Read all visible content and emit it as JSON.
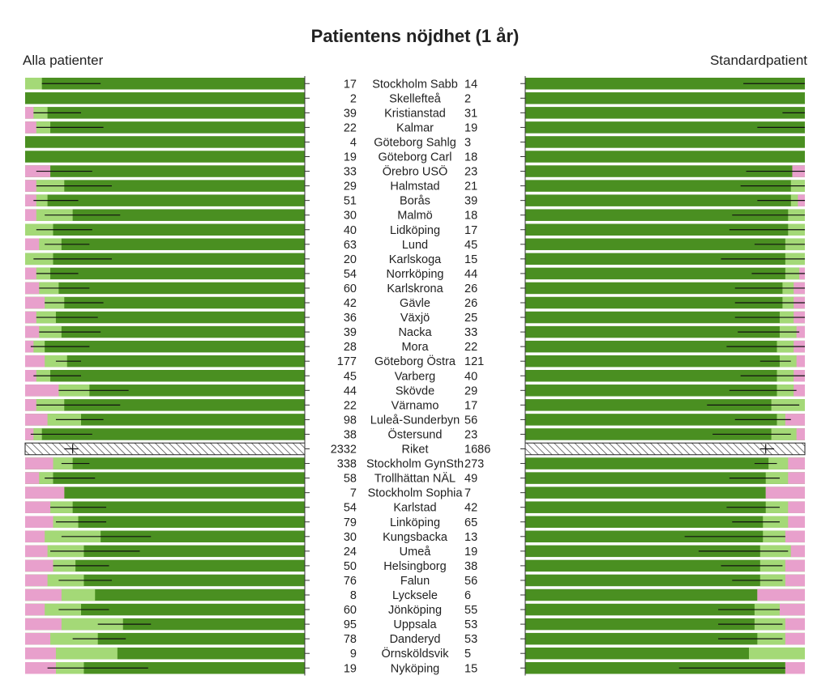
{
  "chart_data": {
    "type": "bar",
    "title": "Patientens nöjdhet (1 år)",
    "left_panel_title": "Alla patienter",
    "right_panel_title": "Standardpatient",
    "colors": {
      "low": "#e8a0cc",
      "mid": "#a4d977",
      "high": "#4a8f21",
      "error_bar": "#111111",
      "axis": "#333333"
    },
    "rows": [
      {
        "name": "Stockholm Sabb",
        "n_all": "17",
        "n_std": "14",
        "all": {
          "low": 0.0,
          "mid": 0.06,
          "est": 0.06,
          "ci": [
            0.06,
            0.27
          ]
        },
        "std": {
          "low": 0.0,
          "mid": 0.0,
          "est": 0.0,
          "ci": [
            0.0,
            0.22
          ]
        }
      },
      {
        "name": "Skellefteå",
        "n_all": "2",
        "n_std": "2",
        "all": {
          "low": 0.0,
          "mid": 0.0,
          "est": 0.0,
          "ci": null
        },
        "std": {
          "low": 0.0,
          "mid": 0.0,
          "est": 0.0,
          "ci": null
        }
      },
      {
        "name": "Kristianstad",
        "n_all": "39",
        "n_std": "31",
        "all": {
          "low": 0.03,
          "mid": 0.08,
          "est": 0.08,
          "ci": [
            0.03,
            0.2
          ]
        },
        "std": {
          "low": 0.0,
          "mid": 0.0,
          "est": 0.0,
          "ci": [
            0.0,
            0.08
          ]
        }
      },
      {
        "name": "Kalmar",
        "n_all": "22",
        "n_std": "19",
        "all": {
          "low": 0.04,
          "mid": 0.09,
          "est": 0.09,
          "ci": [
            0.04,
            0.28
          ]
        },
        "std": {
          "low": 0.0,
          "mid": 0.0,
          "est": 0.0,
          "ci": [
            0.0,
            0.17
          ]
        }
      },
      {
        "name": "Göteborg Sahlg",
        "n_all": "4",
        "n_std": "3",
        "all": {
          "low": 0.0,
          "mid": 0.0,
          "est": 0.0,
          "ci": null
        },
        "std": {
          "low": 0.0,
          "mid": 0.0,
          "est": 0.0,
          "ci": null
        }
      },
      {
        "name": "Göteborg Carl",
        "n_all": "19",
        "n_std": "18",
        "all": {
          "low": 0.0,
          "mid": 0.0,
          "est": 0.0,
          "ci": null
        },
        "std": {
          "low": 0.0,
          "mid": 0.0,
          "est": 0.0,
          "ci": null
        }
      },
      {
        "name": "Örebro USÖ",
        "n_all": "33",
        "n_std": "23",
        "all": {
          "low": 0.09,
          "mid": 0.09,
          "est": 0.09,
          "ci": [
            0.04,
            0.24
          ]
        },
        "std": {
          "low": 0.045,
          "mid": 0.045,
          "est": 0.045,
          "ci": [
            0.0,
            0.21
          ]
        }
      },
      {
        "name": "Halmstad",
        "n_all": "29",
        "n_std": "21",
        "all": {
          "low": 0.04,
          "mid": 0.14,
          "est": 0.14,
          "ci": [
            0.04,
            0.31
          ]
        },
        "std": {
          "low": 0.0,
          "mid": 0.05,
          "est": 0.05,
          "ci": [
            0.0,
            0.23
          ]
        }
      },
      {
        "name": "Borås",
        "n_all": "51",
        "n_std": "39",
        "all": {
          "low": 0.04,
          "mid": 0.08,
          "est": 0.08,
          "ci": [
            0.03,
            0.19
          ]
        },
        "std": {
          "low": 0.025,
          "mid": 0.05,
          "est": 0.05,
          "ci": [
            0.0,
            0.17
          ]
        }
      },
      {
        "name": "Malmö",
        "n_all": "30",
        "n_std": "18",
        "all": {
          "low": 0.04,
          "mid": 0.17,
          "est": 0.17,
          "ci": [
            0.07,
            0.34
          ]
        },
        "std": {
          "low": 0.0,
          "mid": 0.06,
          "est": 0.06,
          "ci": [
            0.0,
            0.26
          ]
        }
      },
      {
        "name": "Lidköping",
        "n_all": "40",
        "n_std": "17",
        "all": {
          "low": 0.0,
          "mid": 0.1,
          "est": 0.1,
          "ci": [
            0.04,
            0.24
          ]
        },
        "std": {
          "low": 0.0,
          "mid": 0.06,
          "est": 0.06,
          "ci": [
            0.0,
            0.27
          ]
        }
      },
      {
        "name": "Lund",
        "n_all": "63",
        "n_std": "45",
        "all": {
          "low": 0.05,
          "mid": 0.13,
          "est": 0.13,
          "ci": [
            0.07,
            0.23
          ]
        },
        "std": {
          "low": 0.0,
          "mid": 0.07,
          "est": 0.07,
          "ci": [
            0.0,
            0.18
          ]
        }
      },
      {
        "name": "Karlskoga",
        "n_all": "20",
        "n_std": "15",
        "all": {
          "low": 0.0,
          "mid": 0.1,
          "est": 0.1,
          "ci": [
            0.03,
            0.31
          ]
        },
        "std": {
          "low": 0.0,
          "mid": 0.07,
          "est": 0.07,
          "ci": [
            0.0,
            0.3
          ]
        }
      },
      {
        "name": "Norrköping",
        "n_all": "54",
        "n_std": "44",
        "all": {
          "low": 0.04,
          "mid": 0.09,
          "est": 0.09,
          "ci": [
            0.04,
            0.19
          ]
        },
        "std": {
          "low": 0.02,
          "mid": 0.07,
          "est": 0.07,
          "ci": [
            0.0,
            0.19
          ]
        }
      },
      {
        "name": "Karlskrona",
        "n_all": "60",
        "n_std": "26",
        "all": {
          "low": 0.05,
          "mid": 0.12,
          "est": 0.12,
          "ci": [
            0.05,
            0.23
          ]
        },
        "std": {
          "low": 0.04,
          "mid": 0.08,
          "est": 0.08,
          "ci": [
            0.0,
            0.25
          ]
        }
      },
      {
        "name": "Gävle",
        "n_all": "42",
        "n_std": "26",
        "all": {
          "low": 0.07,
          "mid": 0.14,
          "est": 0.14,
          "ci": [
            0.07,
            0.28
          ]
        },
        "std": {
          "low": 0.04,
          "mid": 0.08,
          "est": 0.08,
          "ci": [
            0.0,
            0.25
          ]
        }
      },
      {
        "name": "Växjö",
        "n_all": "36",
        "n_std": "25",
        "all": {
          "low": 0.04,
          "mid": 0.11,
          "est": 0.11,
          "ci": [
            0.04,
            0.26
          ]
        },
        "std": {
          "low": 0.04,
          "mid": 0.09,
          "est": 0.09,
          "ci": [
            0.0,
            0.25
          ]
        }
      },
      {
        "name": "Nacka",
        "n_all": "39",
        "n_std": "33",
        "all": {
          "low": 0.05,
          "mid": 0.13,
          "est": 0.13,
          "ci": [
            0.05,
            0.27
          ]
        },
        "std": {
          "low": 0.03,
          "mid": 0.09,
          "est": 0.09,
          "ci": [
            0.02,
            0.24
          ]
        }
      },
      {
        "name": "Mora",
        "n_all": "28",
        "n_std": "22",
        "all": {
          "low": 0.03,
          "mid": 0.07,
          "est": 0.07,
          "ci": [
            0.02,
            0.23
          ]
        },
        "std": {
          "low": 0.04,
          "mid": 0.1,
          "est": 0.1,
          "ci": [
            0.0,
            0.28
          ]
        }
      },
      {
        "name": "Göteborg Östra",
        "n_all": "177",
        "n_std": "121",
        "all": {
          "low": 0.07,
          "mid": 0.15,
          "est": 0.15,
          "ci": [
            0.11,
            0.2
          ]
        },
        "std": {
          "low": 0.03,
          "mid": 0.09,
          "est": 0.09,
          "ci": [
            0.05,
            0.16
          ]
        }
      },
      {
        "name": "Varberg",
        "n_all": "45",
        "n_std": "40",
        "all": {
          "low": 0.04,
          "mid": 0.09,
          "est": 0.09,
          "ci": [
            0.03,
            0.2
          ]
        },
        "std": {
          "low": 0.04,
          "mid": 0.1,
          "est": 0.1,
          "ci": [
            0.0,
            0.23
          ]
        }
      },
      {
        "name": "Skövde",
        "n_all": "44",
        "n_std": "29",
        "all": {
          "low": 0.12,
          "mid": 0.23,
          "est": 0.23,
          "ci": [
            0.12,
            0.37
          ]
        },
        "std": {
          "low": 0.04,
          "mid": 0.1,
          "est": 0.1,
          "ci": [
            0.03,
            0.27
          ]
        }
      },
      {
        "name": "Värnamo",
        "n_all": "22",
        "n_std": "17",
        "all": {
          "low": 0.04,
          "mid": 0.14,
          "est": 0.14,
          "ci": [
            0.04,
            0.34
          ]
        },
        "std": {
          "low": 0.0,
          "mid": 0.12,
          "est": 0.12,
          "ci": [
            0.02,
            0.35
          ]
        }
      },
      {
        "name": "Luleå-Sunderbyn",
        "n_all": "98",
        "n_std": "56",
        "all": {
          "low": 0.08,
          "mid": 0.2,
          "est": 0.2,
          "ci": [
            0.11,
            0.28
          ]
        },
        "std": {
          "low": 0.07,
          "mid": 0.1,
          "est": 0.13,
          "ci": [
            0.05,
            0.25
          ]
        }
      },
      {
        "name": "Östersund",
        "n_all": "38",
        "n_std": "23",
        "all": {
          "low": 0.03,
          "mid": 0.06,
          "est": 0.06,
          "ci": [
            0.02,
            0.24
          ]
        },
        "std": {
          "low": 0.03,
          "mid": 0.12,
          "est": 0.13,
          "ci": [
            0.05,
            0.33
          ]
        }
      },
      {
        "name": "Riket",
        "n_all": "2332",
        "n_std": "1686",
        "hatched": true,
        "all": {
          "low": 0.08,
          "mid": 0.17,
          "est": 0.17,
          "ci": [
            0.14,
            0.19
          ]
        },
        "std": {
          "low": 0.05,
          "mid": 0.13,
          "est": 0.14,
          "ci": [
            0.11,
            0.16
          ]
        }
      },
      {
        "name": "Stockholm GynSth",
        "n_all": "338",
        "n_std": "273",
        "all": {
          "low": 0.1,
          "mid": 0.17,
          "est": 0.17,
          "ci": [
            0.13,
            0.23
          ]
        },
        "std": {
          "low": 0.06,
          "mid": 0.13,
          "est": 0.13,
          "ci": [
            0.1,
            0.18
          ]
        }
      },
      {
        "name": "Trollhättan NÄL",
        "n_all": "58",
        "n_std": "49",
        "all": {
          "low": 0.05,
          "mid": 0.1,
          "est": 0.1,
          "ci": [
            0.07,
            0.25
          ]
        },
        "std": {
          "low": 0.06,
          "mid": 0.14,
          "est": 0.15,
          "ci": [
            0.09,
            0.27
          ]
        }
      },
      {
        "name": "Stockholm Sophia",
        "n_all": "7",
        "n_std": "7",
        "all": {
          "low": 0.14,
          "mid": 0.14,
          "est": 0.14,
          "ci": null
        },
        "std": {
          "low": 0.14,
          "mid": 0.14,
          "est": 0.14,
          "ci": null
        }
      },
      {
        "name": "Karlstad",
        "n_all": "54",
        "n_std": "42",
        "all": {
          "low": 0.09,
          "mid": 0.17,
          "est": 0.17,
          "ci": [
            0.09,
            0.29
          ]
        },
        "std": {
          "low": 0.06,
          "mid": 0.14,
          "est": 0.15,
          "ci": [
            0.09,
            0.28
          ]
        }
      },
      {
        "name": "Linköping",
        "n_all": "79",
        "n_std": "65",
        "all": {
          "low": 0.1,
          "mid": 0.19,
          "est": 0.19,
          "ci": [
            0.11,
            0.29
          ]
        },
        "std": {
          "low": 0.06,
          "mid": 0.15,
          "est": 0.16,
          "ci": [
            0.09,
            0.26
          ]
        }
      },
      {
        "name": "Kungsbacka",
        "n_all": "30",
        "n_std": "13",
        "all": {
          "low": 0.07,
          "mid": 0.27,
          "est": 0.27,
          "ci": [
            0.13,
            0.45
          ]
        },
        "std": {
          "low": 0.07,
          "mid": 0.15,
          "est": 0.17,
          "ci": [
            0.07,
            0.43
          ]
        }
      },
      {
        "name": "Umeå",
        "n_all": "24",
        "n_std": "19",
        "all": {
          "low": 0.08,
          "mid": 0.21,
          "est": 0.21,
          "ci": [
            0.09,
            0.41
          ]
        },
        "std": {
          "low": 0.05,
          "mid": 0.16,
          "est": 0.16,
          "ci": [
            0.06,
            0.38
          ]
        }
      },
      {
        "name": "Helsingborg",
        "n_all": "50",
        "n_std": "38",
        "all": {
          "low": 0.1,
          "mid": 0.18,
          "est": 0.18,
          "ci": [
            0.1,
            0.3
          ]
        },
        "std": {
          "low": 0.07,
          "mid": 0.16,
          "est": 0.16,
          "ci": [
            0.08,
            0.3
          ]
        }
      },
      {
        "name": "Falun",
        "n_all": "76",
        "n_std": "56",
        "all": {
          "low": 0.08,
          "mid": 0.21,
          "est": 0.21,
          "ci": [
            0.12,
            0.31
          ]
        },
        "std": {
          "low": 0.07,
          "mid": 0.16,
          "est": 0.16,
          "ci": [
            0.08,
            0.26
          ]
        }
      },
      {
        "name": "Lycksele",
        "n_all": "8",
        "n_std": "6",
        "all": {
          "low": 0.13,
          "mid": 0.25,
          "est": 0.25,
          "ci": null
        },
        "std": {
          "low": 0.17,
          "mid": 0.17,
          "est": 0.17,
          "ci": null
        }
      },
      {
        "name": "Jönköping",
        "n_all": "60",
        "n_std": "55",
        "all": {
          "low": 0.07,
          "mid": 0.2,
          "est": 0.2,
          "ci": [
            0.12,
            0.3
          ]
        },
        "std": {
          "low": 0.09,
          "mid": 0.18,
          "est": 0.18,
          "ci": [
            0.09,
            0.31
          ]
        }
      },
      {
        "name": "Uppsala",
        "n_all": "95",
        "n_std": "53",
        "all": {
          "low": 0.13,
          "mid": 0.35,
          "est": 0.35,
          "ci": [
            0.26,
            0.45
          ]
        },
        "std": {
          "low": 0.07,
          "mid": 0.18,
          "est": 0.18,
          "ci": [
            0.08,
            0.31
          ]
        }
      },
      {
        "name": "Danderyd",
        "n_all": "78",
        "n_std": "53",
        "all": {
          "low": 0.09,
          "mid": 0.26,
          "est": 0.26,
          "ci": [
            0.17,
            0.36
          ]
        },
        "std": {
          "low": 0.07,
          "mid": 0.17,
          "est": 0.18,
          "ci": [
            0.08,
            0.31
          ]
        }
      },
      {
        "name": "Örnsköldsvik",
        "n_all": "9",
        "n_std": "5",
        "all": {
          "low": 0.11,
          "mid": 0.33,
          "est": 0.33,
          "ci": null
        },
        "std": {
          "low": 0.0,
          "mid": 0.2,
          "est": 0.2,
          "ci": null
        }
      },
      {
        "name": "Nyköping",
        "n_all": "19",
        "n_std": "15",
        "all": {
          "low": 0.11,
          "mid": 0.21,
          "est": 0.21,
          "ci": [
            0.08,
            0.44
          ]
        },
        "std": {
          "low": 0.07,
          "mid": 0.07,
          "est": 0.07,
          "ci": [
            0.07,
            0.45
          ]
        }
      }
    ]
  }
}
